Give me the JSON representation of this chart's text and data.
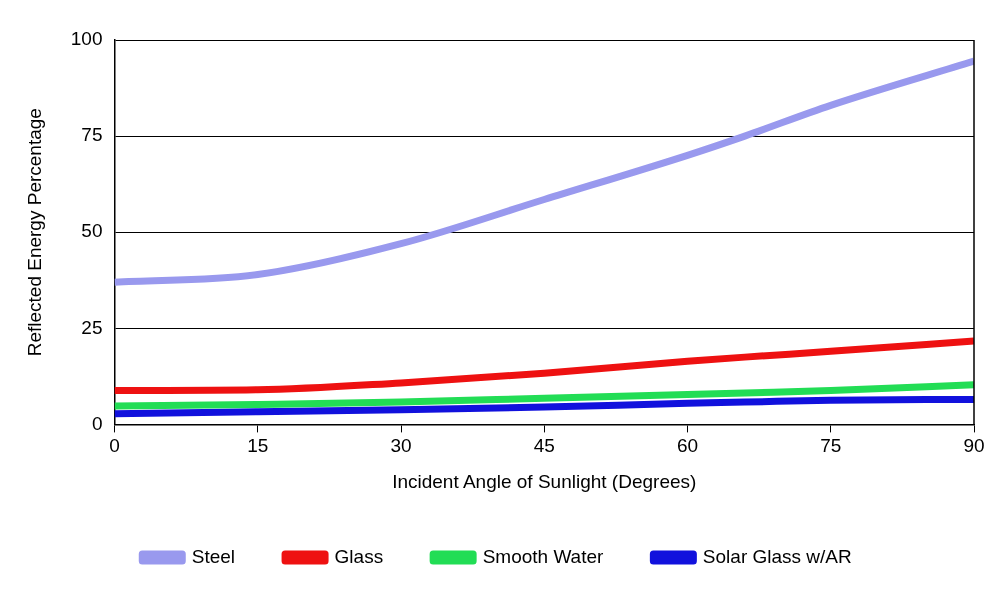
{
  "chart_data": {
    "type": "line",
    "xlabel": "Incident Angle of Sunlight (Degrees)",
    "ylabel": "Reflected Energy Percentage",
    "x": [
      0,
      15,
      30,
      45,
      60,
      66,
      75,
      90
    ],
    "series": [
      {
        "name": "Steel",
        "color": "#9999ee",
        "values": [
          37,
          39,
          47,
          58.5,
          70,
          75,
          83,
          94.5
        ]
      },
      {
        "name": "Glass",
        "color": "#ee1111",
        "values": [
          8.8,
          9,
          10.8,
          13.3,
          16.4,
          17.5,
          19,
          21.7
        ]
      },
      {
        "name": "Smooth Water",
        "color": "#22dd55",
        "values": [
          4.8,
          5.2,
          5.8,
          6.8,
          7.8,
          8.2,
          8.8,
          10.3
        ]
      },
      {
        "name": "Solar Glass w/AR",
        "color": "#1111dd",
        "values": [
          2.8,
          3.3,
          3.8,
          4.5,
          5.5,
          5.8,
          6.3,
          6.5
        ]
      }
    ],
    "xlim": [
      0,
      90
    ],
    "xticks": [
      0,
      15,
      30,
      45,
      60,
      75,
      90
    ],
    "ylim": [
      0,
      100
    ],
    "yticks": [
      0,
      25,
      50,
      75,
      100
    ],
    "grid": "y",
    "legend": "bottom",
    "marker": "none",
    "line_style": "solid"
  }
}
